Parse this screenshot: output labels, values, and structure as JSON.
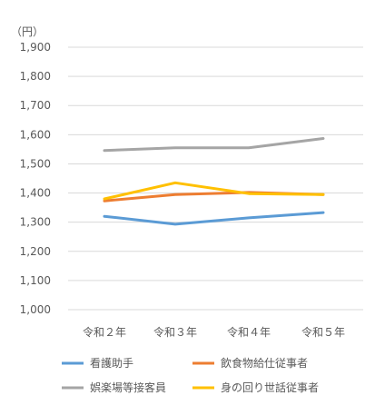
{
  "chart_data": {
    "type": "line",
    "unit_label": "（円）",
    "categories": [
      "令和２年",
      "令和３年",
      "令和４年",
      "令和５年"
    ],
    "ylim": [
      1000,
      1900
    ],
    "yticks": [
      1000,
      1100,
      1200,
      1300,
      1400,
      1500,
      1600,
      1700,
      1800,
      1900
    ],
    "ytick_labels": [
      "1,000",
      "1,100",
      "1,200",
      "1,300",
      "1,400",
      "1,500",
      "1,600",
      "1,700",
      "1,800",
      "1,900"
    ],
    "grid": true,
    "legend_position": "bottom",
    "series": [
      {
        "name": "看護助手",
        "color": "#5B9BD5",
        "values": [
          1320,
          1293,
          1315,
          1333
        ]
      },
      {
        "name": "飲食物給仕従事者",
        "color": "#ED7D31",
        "values": [
          1373,
          1395,
          1402,
          1395
        ]
      },
      {
        "name": "娯楽場等接客員",
        "color": "#A5A5A5",
        "values": [
          1546,
          1555,
          1555,
          1587
        ]
      },
      {
        "name": "身の回り世話従事者",
        "color": "#FFC000",
        "values": [
          1380,
          1435,
          1398,
          1395
        ]
      }
    ]
  }
}
